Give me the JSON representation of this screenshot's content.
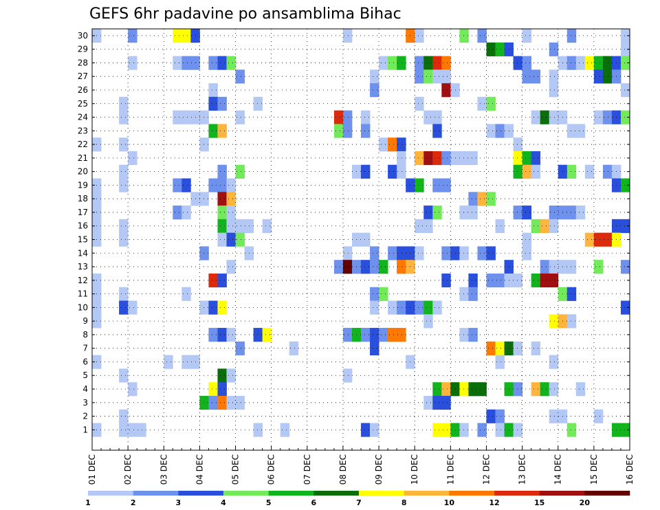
{
  "chart_data": {
    "type": "heatmap",
    "title": "GEFS 6hr padavine po ansamblima Bihac",
    "xlabel": "",
    "ylabel": "",
    "x_time_steps": 60,
    "steps_per_day": 4,
    "x_tick_labels": [
      "01 DEC",
      "02 DEC",
      "03 DEC",
      "04 DEC",
      "05 DEC",
      "06 DEC",
      "07 DEC",
      "08 DEC",
      "09 DEC",
      "10 DEC",
      "11 DEC",
      "12 DEC",
      "13 DEC",
      "14 DEC",
      "15 DEC",
      "16 DEC"
    ],
    "y_members": [
      0,
      1,
      2,
      3,
      4,
      5,
      6,
      7,
      8,
      9,
      10,
      11,
      12,
      13,
      14,
      15,
      16,
      17,
      18,
      19,
      20,
      21,
      22,
      23,
      24,
      25,
      26,
      27,
      28,
      29,
      30
    ],
    "y_tick_labels": [
      "1",
      "2",
      "3",
      "4",
      "5",
      "6",
      "7",
      "8",
      "9",
      "10",
      "11",
      "12",
      "13",
      "14",
      "15",
      "16",
      "17",
      "18",
      "19",
      "20",
      "21",
      "22",
      "23",
      "24",
      "25",
      "26",
      "27",
      "28",
      "29",
      "30"
    ],
    "grid": true,
    "colorbar": {
      "position": "bottom",
      "colors": [
        "#b4c8f5",
        "#6e91ee",
        "#2a4fdc",
        "#72ea5a",
        "#12b41e",
        "#0a6e0a",
        "#ffff00",
        "#ffb43c",
        "#ff7800",
        "#dc2a0a",
        "#a01010",
        "#640000"
      ],
      "labels": [
        "1",
        "2",
        "3",
        "4",
        "5",
        "6",
        "7",
        "8",
        "10",
        "12",
        "15",
        "20"
      ]
    },
    "cells": [
      [
        0,
        30,
        1
      ],
      [
        4,
        30,
        2
      ],
      [
        9,
        30,
        7
      ],
      [
        10,
        30,
        7
      ],
      [
        11,
        30,
        3
      ],
      [
        28,
        30,
        1
      ],
      [
        35,
        30,
        9
      ],
      [
        36,
        30,
        1
      ],
      [
        41,
        30,
        4
      ],
      [
        43,
        30,
        2
      ],
      [
        48,
        30,
        1
      ],
      [
        53,
        30,
        2
      ],
      [
        59,
        30,
        1
      ],
      [
        44,
        29,
        6
      ],
      [
        45,
        29,
        5
      ],
      [
        46,
        29,
        3
      ],
      [
        51,
        29,
        2
      ],
      [
        59,
        29,
        1
      ],
      [
        4,
        28,
        1
      ],
      [
        9,
        28,
        1
      ],
      [
        10,
        28,
        2
      ],
      [
        11,
        28,
        2
      ],
      [
        13,
        28,
        2
      ],
      [
        14,
        28,
        3
      ],
      [
        15,
        28,
        4
      ],
      [
        32,
        28,
        1
      ],
      [
        33,
        28,
        4
      ],
      [
        34,
        28,
        5
      ],
      [
        36,
        28,
        2
      ],
      [
        37,
        28,
        6
      ],
      [
        38,
        28,
        10
      ],
      [
        39,
        28,
        9
      ],
      [
        47,
        28,
        3
      ],
      [
        48,
        28,
        2
      ],
      [
        52,
        28,
        1
      ],
      [
        53,
        28,
        2
      ],
      [
        54,
        28,
        1
      ],
      [
        55,
        28,
        7
      ],
      [
        56,
        28,
        5
      ],
      [
        57,
        28,
        6
      ],
      [
        58,
        28,
        3
      ],
      [
        59,
        28,
        4
      ],
      [
        16,
        27,
        2
      ],
      [
        31,
        27,
        1
      ],
      [
        36,
        27,
        2
      ],
      [
        37,
        27,
        4
      ],
      [
        38,
        27,
        1
      ],
      [
        39,
        27,
        1
      ],
      [
        48,
        27,
        2
      ],
      [
        49,
        27,
        2
      ],
      [
        51,
        27,
        1
      ],
      [
        56,
        27,
        3
      ],
      [
        57,
        27,
        6
      ],
      [
        58,
        27,
        2
      ],
      [
        13,
        26,
        1
      ],
      [
        31,
        26,
        2
      ],
      [
        39,
        26,
        11
      ],
      [
        40,
        26,
        1
      ],
      [
        51,
        26,
        1
      ],
      [
        59,
        26,
        1
      ],
      [
        3,
        25,
        1
      ],
      [
        13,
        25,
        3
      ],
      [
        14,
        25,
        2
      ],
      [
        18,
        25,
        1
      ],
      [
        36,
        25,
        1
      ],
      [
        43,
        25,
        1
      ],
      [
        44,
        25,
        4
      ],
      [
        3,
        24,
        1
      ],
      [
        9,
        24,
        1
      ],
      [
        10,
        24,
        1
      ],
      [
        11,
        24,
        1
      ],
      [
        12,
        24,
        1
      ],
      [
        16,
        24,
        1
      ],
      [
        27,
        24,
        10
      ],
      [
        28,
        24,
        2
      ],
      [
        30,
        24,
        1
      ],
      [
        37,
        24,
        1
      ],
      [
        38,
        24,
        1
      ],
      [
        49,
        24,
        1
      ],
      [
        50,
        24,
        6
      ],
      [
        51,
        24,
        1
      ],
      [
        52,
        24,
        1
      ],
      [
        56,
        24,
        1
      ],
      [
        57,
        24,
        2
      ],
      [
        58,
        24,
        3
      ],
      [
        59,
        24,
        4
      ],
      [
        13,
        23,
        5
      ],
      [
        14,
        23,
        8
      ],
      [
        27,
        23,
        4
      ],
      [
        28,
        23,
        2
      ],
      [
        30,
        23,
        2
      ],
      [
        38,
        23,
        3
      ],
      [
        44,
        23,
        1
      ],
      [
        45,
        23,
        2
      ],
      [
        46,
        23,
        1
      ],
      [
        53,
        23,
        1
      ],
      [
        54,
        23,
        1
      ],
      [
        0,
        22,
        1
      ],
      [
        3,
        22,
        1
      ],
      [
        12,
        22,
        1
      ],
      [
        32,
        22,
        1
      ],
      [
        33,
        22,
        9
      ],
      [
        34,
        22,
        3
      ],
      [
        47,
        22,
        1
      ],
      [
        4,
        21,
        1
      ],
      [
        34,
        21,
        1
      ],
      [
        36,
        21,
        8
      ],
      [
        37,
        21,
        11
      ],
      [
        38,
        21,
        10
      ],
      [
        39,
        21,
        2
      ],
      [
        40,
        21,
        1
      ],
      [
        41,
        21,
        1
      ],
      [
        42,
        21,
        1
      ],
      [
        47,
        21,
        7
      ],
      [
        48,
        21,
        5
      ],
      [
        49,
        21,
        3
      ],
      [
        3,
        20,
        1
      ],
      [
        14,
        20,
        2
      ],
      [
        16,
        20,
        4
      ],
      [
        29,
        20,
        1
      ],
      [
        30,
        20,
        3
      ],
      [
        33,
        20,
        3
      ],
      [
        34,
        20,
        1
      ],
      [
        47,
        20,
        5
      ],
      [
        48,
        20,
        8
      ],
      [
        49,
        20,
        1
      ],
      [
        52,
        20,
        3
      ],
      [
        53,
        20,
        4
      ],
      [
        55,
        20,
        1
      ],
      [
        57,
        20,
        2
      ],
      [
        58,
        20,
        1
      ],
      [
        0,
        19,
        1
      ],
      [
        3,
        19,
        1
      ],
      [
        9,
        19,
        2
      ],
      [
        10,
        19,
        3
      ],
      [
        13,
        19,
        2
      ],
      [
        14,
        19,
        2
      ],
      [
        15,
        19,
        1
      ],
      [
        35,
        19,
        3
      ],
      [
        36,
        19,
        5
      ],
      [
        38,
        19,
        2
      ],
      [
        39,
        19,
        2
      ],
      [
        58,
        19,
        3
      ],
      [
        59,
        19,
        5
      ],
      [
        0,
        18,
        1
      ],
      [
        11,
        18,
        1
      ],
      [
        12,
        18,
        1
      ],
      [
        14,
        18,
        11
      ],
      [
        15,
        18,
        8
      ],
      [
        42,
        18,
        2
      ],
      [
        43,
        18,
        8
      ],
      [
        44,
        18,
        4
      ],
      [
        0,
        17,
        1
      ],
      [
        9,
        17,
        2
      ],
      [
        10,
        17,
        1
      ],
      [
        14,
        17,
        4
      ],
      [
        15,
        17,
        1
      ],
      [
        37,
        17,
        3
      ],
      [
        38,
        17,
        4
      ],
      [
        41,
        17,
        1
      ],
      [
        42,
        17,
        1
      ],
      [
        47,
        17,
        2
      ],
      [
        48,
        17,
        3
      ],
      [
        51,
        17,
        2
      ],
      [
        52,
        17,
        2
      ],
      [
        53,
        17,
        2
      ],
      [
        54,
        17,
        1
      ],
      [
        0,
        16,
        1
      ],
      [
        3,
        16,
        1
      ],
      [
        14,
        16,
        5
      ],
      [
        15,
        16,
        1
      ],
      [
        16,
        16,
        1
      ],
      [
        17,
        16,
        1
      ],
      [
        19,
        16,
        1
      ],
      [
        36,
        16,
        1
      ],
      [
        37,
        16,
        1
      ],
      [
        45,
        16,
        1
      ],
      [
        49,
        16,
        4
      ],
      [
        50,
        16,
        8
      ],
      [
        51,
        16,
        1
      ],
      [
        58,
        16,
        3
      ],
      [
        59,
        16,
        3
      ],
      [
        0,
        15,
        1
      ],
      [
        3,
        15,
        1
      ],
      [
        14,
        15,
        1
      ],
      [
        15,
        15,
        3
      ],
      [
        16,
        15,
        4
      ],
      [
        29,
        15,
        1
      ],
      [
        30,
        15,
        1
      ],
      [
        48,
        15,
        1
      ],
      [
        55,
        15,
        8
      ],
      [
        56,
        15,
        10
      ],
      [
        57,
        15,
        10
      ],
      [
        58,
        15,
        7
      ],
      [
        12,
        14,
        2
      ],
      [
        17,
        14,
        1
      ],
      [
        28,
        14,
        1
      ],
      [
        31,
        14,
        2
      ],
      [
        33,
        14,
        2
      ],
      [
        34,
        14,
        3
      ],
      [
        35,
        14,
        3
      ],
      [
        36,
        14,
        1
      ],
      [
        39,
        14,
        2
      ],
      [
        40,
        14,
        3
      ],
      [
        41,
        14,
        1
      ],
      [
        43,
        14,
        2
      ],
      [
        44,
        14,
        3
      ],
      [
        48,
        14,
        1
      ],
      [
        15,
        13,
        1
      ],
      [
        27,
        13,
        2
      ],
      [
        28,
        13,
        12
      ],
      [
        29,
        13,
        2
      ],
      [
        30,
        13,
        3
      ],
      [
        31,
        13,
        2
      ],
      [
        32,
        13,
        5
      ],
      [
        34,
        13,
        9
      ],
      [
        35,
        13,
        8
      ],
      [
        46,
        13,
        3
      ],
      [
        50,
        13,
        2
      ],
      [
        51,
        13,
        1
      ],
      [
        52,
        13,
        1
      ],
      [
        53,
        13,
        1
      ],
      [
        56,
        13,
        4
      ],
      [
        59,
        13,
        2
      ],
      [
        0,
        12,
        1
      ],
      [
        13,
        12,
        10
      ],
      [
        14,
        12,
        3
      ],
      [
        39,
        12,
        3
      ],
      [
        42,
        12,
        3
      ],
      [
        44,
        12,
        2
      ],
      [
        45,
        12,
        2
      ],
      [
        46,
        12,
        1
      ],
      [
        47,
        12,
        1
      ],
      [
        49,
        12,
        5
      ],
      [
        50,
        12,
        11
      ],
      [
        51,
        12,
        11
      ],
      [
        0,
        11,
        1
      ],
      [
        3,
        11,
        1
      ],
      [
        10,
        11,
        1
      ],
      [
        31,
        11,
        2
      ],
      [
        32,
        11,
        4
      ],
      [
        41,
        11,
        1
      ],
      [
        42,
        11,
        2
      ],
      [
        52,
        11,
        4
      ],
      [
        53,
        11,
        3
      ],
      [
        0,
        10,
        1
      ],
      [
        3,
        10,
        3
      ],
      [
        4,
        10,
        1
      ],
      [
        12,
        10,
        1
      ],
      [
        13,
        10,
        3
      ],
      [
        14,
        10,
        7
      ],
      [
        31,
        10,
        1
      ],
      [
        33,
        10,
        1
      ],
      [
        34,
        10,
        2
      ],
      [
        35,
        10,
        3
      ],
      [
        36,
        10,
        2
      ],
      [
        37,
        10,
        5
      ],
      [
        38,
        10,
        1
      ],
      [
        59,
        10,
        3
      ],
      [
        0,
        9,
        1
      ],
      [
        37,
        9,
        1
      ],
      [
        51,
        9,
        7
      ],
      [
        52,
        9,
        8
      ],
      [
        53,
        9,
        1
      ],
      [
        13,
        8,
        2
      ],
      [
        14,
        8,
        3
      ],
      [
        15,
        8,
        1
      ],
      [
        18,
        8,
        3
      ],
      [
        19,
        8,
        7
      ],
      [
        28,
        8,
        2
      ],
      [
        29,
        8,
        5
      ],
      [
        30,
        8,
        2
      ],
      [
        31,
        8,
        3
      ],
      [
        32,
        8,
        2
      ],
      [
        33,
        8,
        9
      ],
      [
        34,
        8,
        9
      ],
      [
        41,
        8,
        1
      ],
      [
        42,
        8,
        2
      ],
      [
        16,
        7,
        2
      ],
      [
        22,
        7,
        1
      ],
      [
        31,
        7,
        3
      ],
      [
        44,
        7,
        9
      ],
      [
        45,
        7,
        7
      ],
      [
        46,
        7,
        6
      ],
      [
        47,
        7,
        1
      ],
      [
        49,
        7,
        1
      ],
      [
        0,
        6,
        1
      ],
      [
        8,
        6,
        1
      ],
      [
        10,
        6,
        1
      ],
      [
        11,
        6,
        1
      ],
      [
        35,
        6,
        1
      ],
      [
        45,
        6,
        1
      ],
      [
        51,
        6,
        1
      ],
      [
        3,
        5,
        1
      ],
      [
        14,
        5,
        6
      ],
      [
        15,
        5,
        1
      ],
      [
        28,
        5,
        1
      ],
      [
        4,
        4,
        1
      ],
      [
        13,
        4,
        7
      ],
      [
        14,
        4,
        3
      ],
      [
        38,
        4,
        5
      ],
      [
        39,
        4,
        8
      ],
      [
        40,
        4,
        6
      ],
      [
        41,
        4,
        7
      ],
      [
        42,
        4,
        6
      ],
      [
        43,
        4,
        6
      ],
      [
        46,
        4,
        5
      ],
      [
        47,
        4,
        2
      ],
      [
        49,
        4,
        8
      ],
      [
        50,
        4,
        5
      ],
      [
        51,
        4,
        1
      ],
      [
        54,
        4,
        1
      ],
      [
        12,
        3,
        5
      ],
      [
        13,
        3,
        2
      ],
      [
        14,
        3,
        9
      ],
      [
        15,
        3,
        1
      ],
      [
        16,
        3,
        1
      ],
      [
        37,
        3,
        1
      ],
      [
        38,
        3,
        3
      ],
      [
        39,
        3,
        3
      ],
      [
        3,
        2,
        1
      ],
      [
        44,
        2,
        3
      ],
      [
        45,
        2,
        2
      ],
      [
        51,
        2,
        1
      ],
      [
        52,
        2,
        1
      ],
      [
        56,
        2,
        1
      ],
      [
        0,
        1,
        1
      ],
      [
        3,
        1,
        1
      ],
      [
        4,
        1,
        1
      ],
      [
        5,
        1,
        1
      ],
      [
        18,
        1,
        1
      ],
      [
        21,
        1,
        1
      ],
      [
        30,
        1,
        3
      ],
      [
        31,
        1,
        1
      ],
      [
        38,
        1,
        7
      ],
      [
        39,
        1,
        7
      ],
      [
        40,
        1,
        5
      ],
      [
        41,
        1,
        1
      ],
      [
        43,
        1,
        2
      ],
      [
        45,
        1,
        1
      ],
      [
        46,
        1,
        5
      ],
      [
        47,
        1,
        1
      ],
      [
        53,
        1,
        4
      ],
      [
        58,
        1,
        5
      ],
      [
        59,
        1,
        5
      ]
    ]
  }
}
